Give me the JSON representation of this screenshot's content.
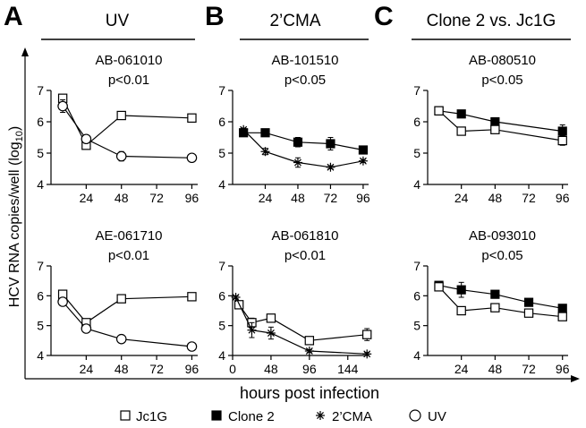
{
  "figure": {
    "panels": [
      {
        "letter": "A",
        "title": "UV"
      },
      {
        "letter": "B",
        "title": "2’CMA"
      },
      {
        "letter": "C",
        "title": "Clone 2 vs. Jc1G"
      }
    ],
    "y_axis_label": "HCV RNA copies/well (log",
    "y_axis_label_sub": "10",
    "y_axis_label_end": ")",
    "x_axis_label": "hours post infection"
  },
  "legend": [
    {
      "name": "Jc1G",
      "marker": "open-square"
    },
    {
      "name": "Clone 2",
      "marker": "filled-square"
    },
    {
      "name": "2’CMA",
      "marker": "asterisk"
    },
    {
      "name": "UV",
      "marker": "open-circle"
    }
  ],
  "chart_data": [
    {
      "type": "line",
      "title": "AB-061010",
      "subtitle": "p<0.01",
      "xticks": [
        24,
        48,
        72,
        96
      ],
      "xlim": [
        0,
        100
      ],
      "yticks": [
        4,
        5,
        6,
        7
      ],
      "ylim": [
        4,
        7
      ],
      "series": [
        {
          "name": "Jc1G",
          "marker": "open-square",
          "x": [
            8,
            24,
            48,
            96
          ],
          "y": [
            6.75,
            5.25,
            6.2,
            6.12
          ],
          "err": [
            0.08,
            0.05,
            0.05,
            0.05
          ]
        },
        {
          "name": "UV",
          "marker": "open-circle",
          "x": [
            8,
            24,
            48,
            96
          ],
          "y": [
            6.5,
            5.45,
            4.9,
            4.85
          ],
          "err": [
            0.2,
            0.05,
            0.15,
            0.05
          ]
        }
      ]
    },
    {
      "type": "line",
      "title": "AB-101510",
      "subtitle": "p<0.05",
      "xticks": [
        24,
        48,
        72,
        96
      ],
      "xlim": [
        0,
        100
      ],
      "yticks": [
        4,
        5,
        6,
        7
      ],
      "ylim": [
        4,
        7
      ],
      "series": [
        {
          "name": "Clone 2",
          "marker": "filled-square",
          "x": [
            8,
            24,
            48,
            72,
            96
          ],
          "y": [
            5.65,
            5.65,
            5.35,
            5.3,
            5.1
          ],
          "err": [
            0.1,
            0.12,
            0.15,
            0.2,
            0.05
          ]
        },
        {
          "name": "2’CMA",
          "marker": "asterisk",
          "x": [
            8,
            24,
            48,
            72,
            96
          ],
          "y": [
            5.75,
            5.05,
            4.7,
            4.55,
            4.75
          ],
          "err": [
            0.05,
            0.1,
            0.15,
            0.05,
            0.05
          ]
        }
      ]
    },
    {
      "type": "line",
      "title": "AB-080510",
      "subtitle": "p<0.05",
      "xticks": [
        24,
        48,
        72,
        96
      ],
      "xlim": [
        0,
        100
      ],
      "yticks": [
        4,
        5,
        6,
        7
      ],
      "ylim": [
        4,
        7
      ],
      "series": [
        {
          "name": "Clone 2",
          "marker": "filled-square",
          "x": [
            8,
            24,
            48,
            96
          ],
          "y": [
            6.35,
            6.25,
            6.0,
            5.7
          ],
          "err": [
            0.08,
            0.05,
            0.05,
            0.2
          ]
        },
        {
          "name": "Jc1G",
          "marker": "open-square",
          "x": [
            8,
            24,
            48,
            96
          ],
          "y": [
            6.35,
            5.7,
            5.75,
            5.4
          ],
          "err": [
            0.08,
            0.05,
            0.08,
            0.15
          ]
        }
      ]
    },
    {
      "type": "line",
      "title": "AE-061710",
      "subtitle": "p<0.01",
      "xticks": [
        24,
        48,
        72,
        96
      ],
      "xlim": [
        0,
        100
      ],
      "yticks": [
        4,
        5,
        6,
        7
      ],
      "ylim": [
        4,
        7
      ],
      "series": [
        {
          "name": "Jc1G",
          "marker": "open-square",
          "x": [
            8,
            24,
            48,
            96
          ],
          "y": [
            6.05,
            5.1,
            5.9,
            5.97
          ],
          "err": [
            0.05,
            0.05,
            0.05,
            0.05
          ]
        },
        {
          "name": "UV",
          "marker": "open-circle",
          "x": [
            8,
            24,
            48,
            96
          ],
          "y": [
            5.8,
            4.9,
            4.55,
            4.3
          ],
          "err": [
            0.05,
            0.05,
            0.08,
            0.05
          ]
        }
      ]
    },
    {
      "type": "line",
      "title": "AB-061810",
      "subtitle": "p<0.01",
      "xticks": [
        0,
        48,
        96,
        144
      ],
      "xlim": [
        0,
        170
      ],
      "yticks": [
        4,
        5,
        6,
        7
      ],
      "ylim": [
        4,
        7
      ],
      "series": [
        {
          "name": "Jc1G",
          "marker": "open-square",
          "x": [
            8,
            24,
            48,
            96,
            168
          ],
          "y": [
            5.7,
            5.1,
            5.25,
            4.5,
            4.7
          ],
          "err": [
            0.1,
            0.15,
            0.1,
            0.1,
            0.2
          ]
        },
        {
          "name": "2’CMA",
          "marker": "asterisk",
          "x": [
            4,
            24,
            48,
            96,
            168
          ],
          "y": [
            5.95,
            4.85,
            4.75,
            4.15,
            4.05
          ],
          "err": [
            0.05,
            0.25,
            0.2,
            0.05,
            0.05
          ]
        }
      ]
    },
    {
      "type": "line",
      "title": "AB-093010",
      "subtitle": "p<0.05",
      "xticks": [
        24,
        48,
        72,
        96
      ],
      "xlim": [
        0,
        100
      ],
      "yticks": [
        4,
        5,
        6,
        7
      ],
      "ylim": [
        4,
        7
      ],
      "series": [
        {
          "name": "Clone 2",
          "marker": "filled-square",
          "x": [
            8,
            24,
            48,
            72,
            96
          ],
          "y": [
            6.35,
            6.2,
            6.05,
            5.78,
            5.58
          ],
          "err": [
            0.12,
            0.25,
            0.05,
            0.05,
            0.05
          ]
        },
        {
          "name": "Jc1G",
          "marker": "open-square",
          "x": [
            8,
            24,
            48,
            72,
            96
          ],
          "y": [
            6.3,
            5.5,
            5.6,
            5.42,
            5.3
          ],
          "err": [
            0.08,
            0.05,
            0.05,
            0.1,
            0.05
          ]
        }
      ]
    }
  ]
}
